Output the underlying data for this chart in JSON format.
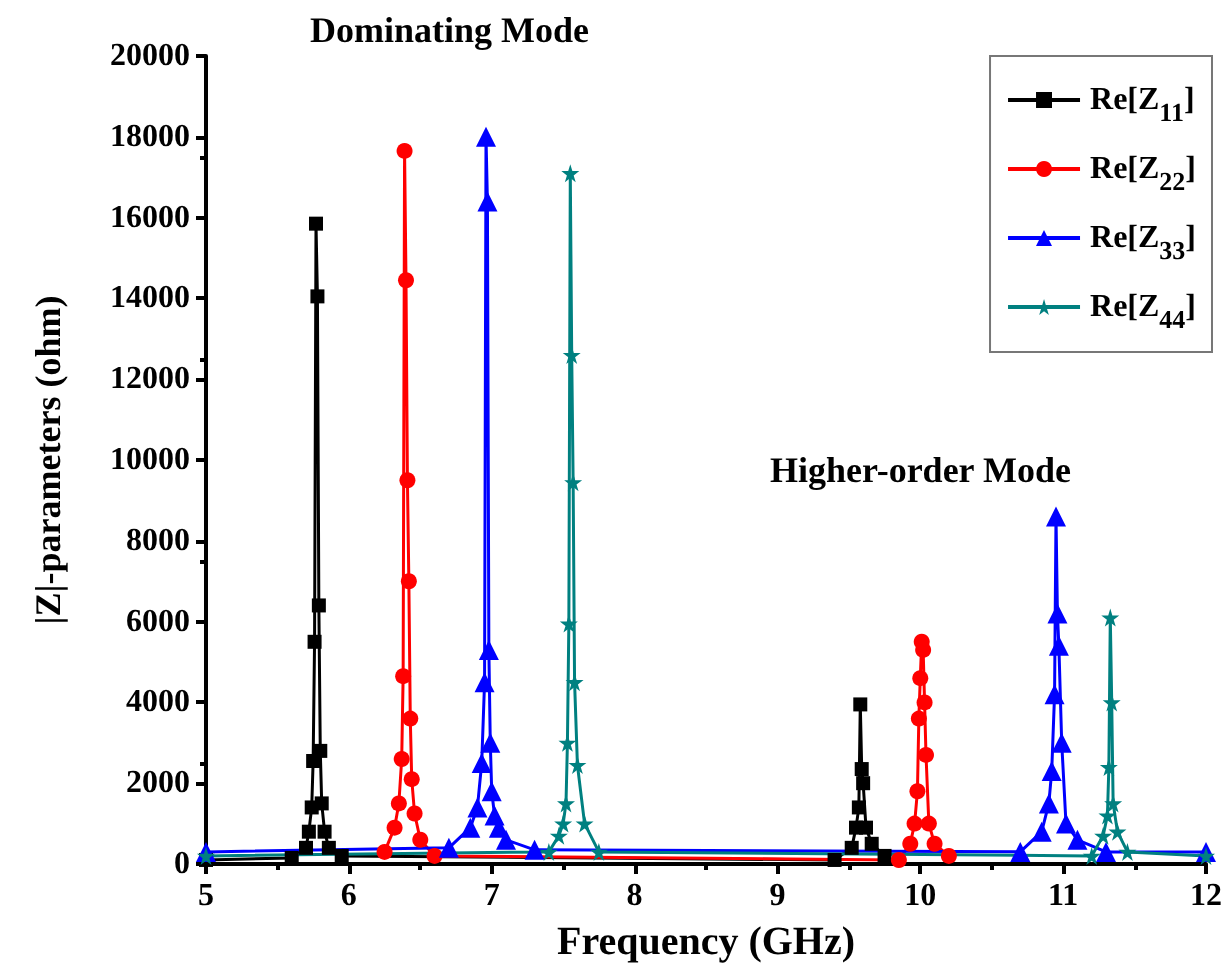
{
  "chart_data": {
    "type": "line",
    "xlabel": "Frequency (GHz)",
    "ylabel": "|Z|-parameters (ohm)",
    "annotations": [
      "Dominating Mode",
      "Higher-order Mode"
    ],
    "xlim": [
      5,
      12
    ],
    "xticks": [
      5,
      6,
      7,
      8,
      9,
      10,
      11,
      12
    ],
    "ylim": [
      0,
      20000
    ],
    "yticks": [
      0,
      2000,
      4000,
      6000,
      8000,
      10000,
      12000,
      14000,
      16000,
      18000,
      20000
    ],
    "grid": false,
    "legend": "top right",
    "line_style": "solid",
    "series": [
      {
        "name": "Re[Z$_{11}$]",
        "color": "#000000",
        "marker": "square",
        "x": [
          5,
          5.6,
          5.7,
          5.72,
          5.74,
          5.75,
          5.76,
          5.77,
          5.78,
          5.79,
          5.8,
          5.81,
          5.83,
          5.86,
          5.95,
          9.4,
          9.52,
          9.55,
          9.57,
          9.58,
          9.59,
          9.6,
          9.62,
          9.66,
          9.75
        ],
        "values": [
          100,
          150,
          400,
          800,
          1400,
          2550,
          5500,
          15850,
          14050,
          6400,
          2800,
          1500,
          800,
          400,
          200,
          100,
          400,
          900,
          1400,
          3950,
          2350,
          2000,
          900,
          500,
          200
        ]
      },
      {
        "name": "Re[Z$_{22}$]",
        "color": "#ff0000",
        "marker": "circle",
        "x": [
          6.25,
          6.32,
          6.35,
          6.37,
          6.38,
          6.39,
          6.4,
          6.41,
          6.42,
          6.43,
          6.44,
          6.46,
          6.5,
          6.6,
          9.85,
          9.93,
          9.96,
          9.98,
          9.99,
          10.0,
          10.01,
          10.02,
          10.03,
          10.04,
          10.06,
          10.1,
          10.2
        ],
        "values": [
          300,
          900,
          1500,
          2600,
          4650,
          17650,
          14450,
          9500,
          7000,
          3600,
          2100,
          1250,
          600,
          200,
          100,
          500,
          1000,
          1800,
          3600,
          4600,
          5500,
          5300,
          4000,
          2700,
          1000,
          500,
          200
        ]
      },
      {
        "name": "Re[Z$_{33}$]",
        "color": "#0000ff",
        "marker": "triangle",
        "x": [
          5,
          6.7,
          6.85,
          6.9,
          6.93,
          6.95,
          6.96,
          6.97,
          6.98,
          6.99,
          7.0,
          7.02,
          7.05,
          7.1,
          7.3,
          10.7,
          10.85,
          10.9,
          10.92,
          10.94,
          10.95,
          10.96,
          10.97,
          10.99,
          11.02,
          11.1,
          11.3,
          12
        ],
        "values": [
          300,
          400,
          900,
          1400,
          2500,
          4500,
          18000,
          16400,
          5300,
          3000,
          1800,
          1200,
          900,
          600,
          350,
          300,
          800,
          1500,
          2300,
          4200,
          8600,
          6200,
          5400,
          3000,
          1000,
          600,
          300,
          300
        ]
      },
      {
        "name": "Re[Z$_{44}$]",
        "color": "#008080",
        "marker": "star",
        "x": [
          5,
          7.4,
          7.47,
          7.5,
          7.52,
          7.53,
          7.54,
          7.55,
          7.56,
          7.57,
          7.58,
          7.6,
          7.65,
          7.75,
          11.2,
          11.28,
          11.31,
          11.32,
          11.33,
          11.34,
          11.35,
          11.38,
          11.45,
          12
        ],
        "values": [
          200,
          300,
          700,
          1000,
          1500,
          3000,
          5950,
          17100,
          12600,
          9450,
          4500,
          2450,
          1000,
          300,
          200,
          700,
          1200,
          2400,
          6100,
          4000,
          1500,
          800,
          300,
          200
        ]
      }
    ]
  }
}
